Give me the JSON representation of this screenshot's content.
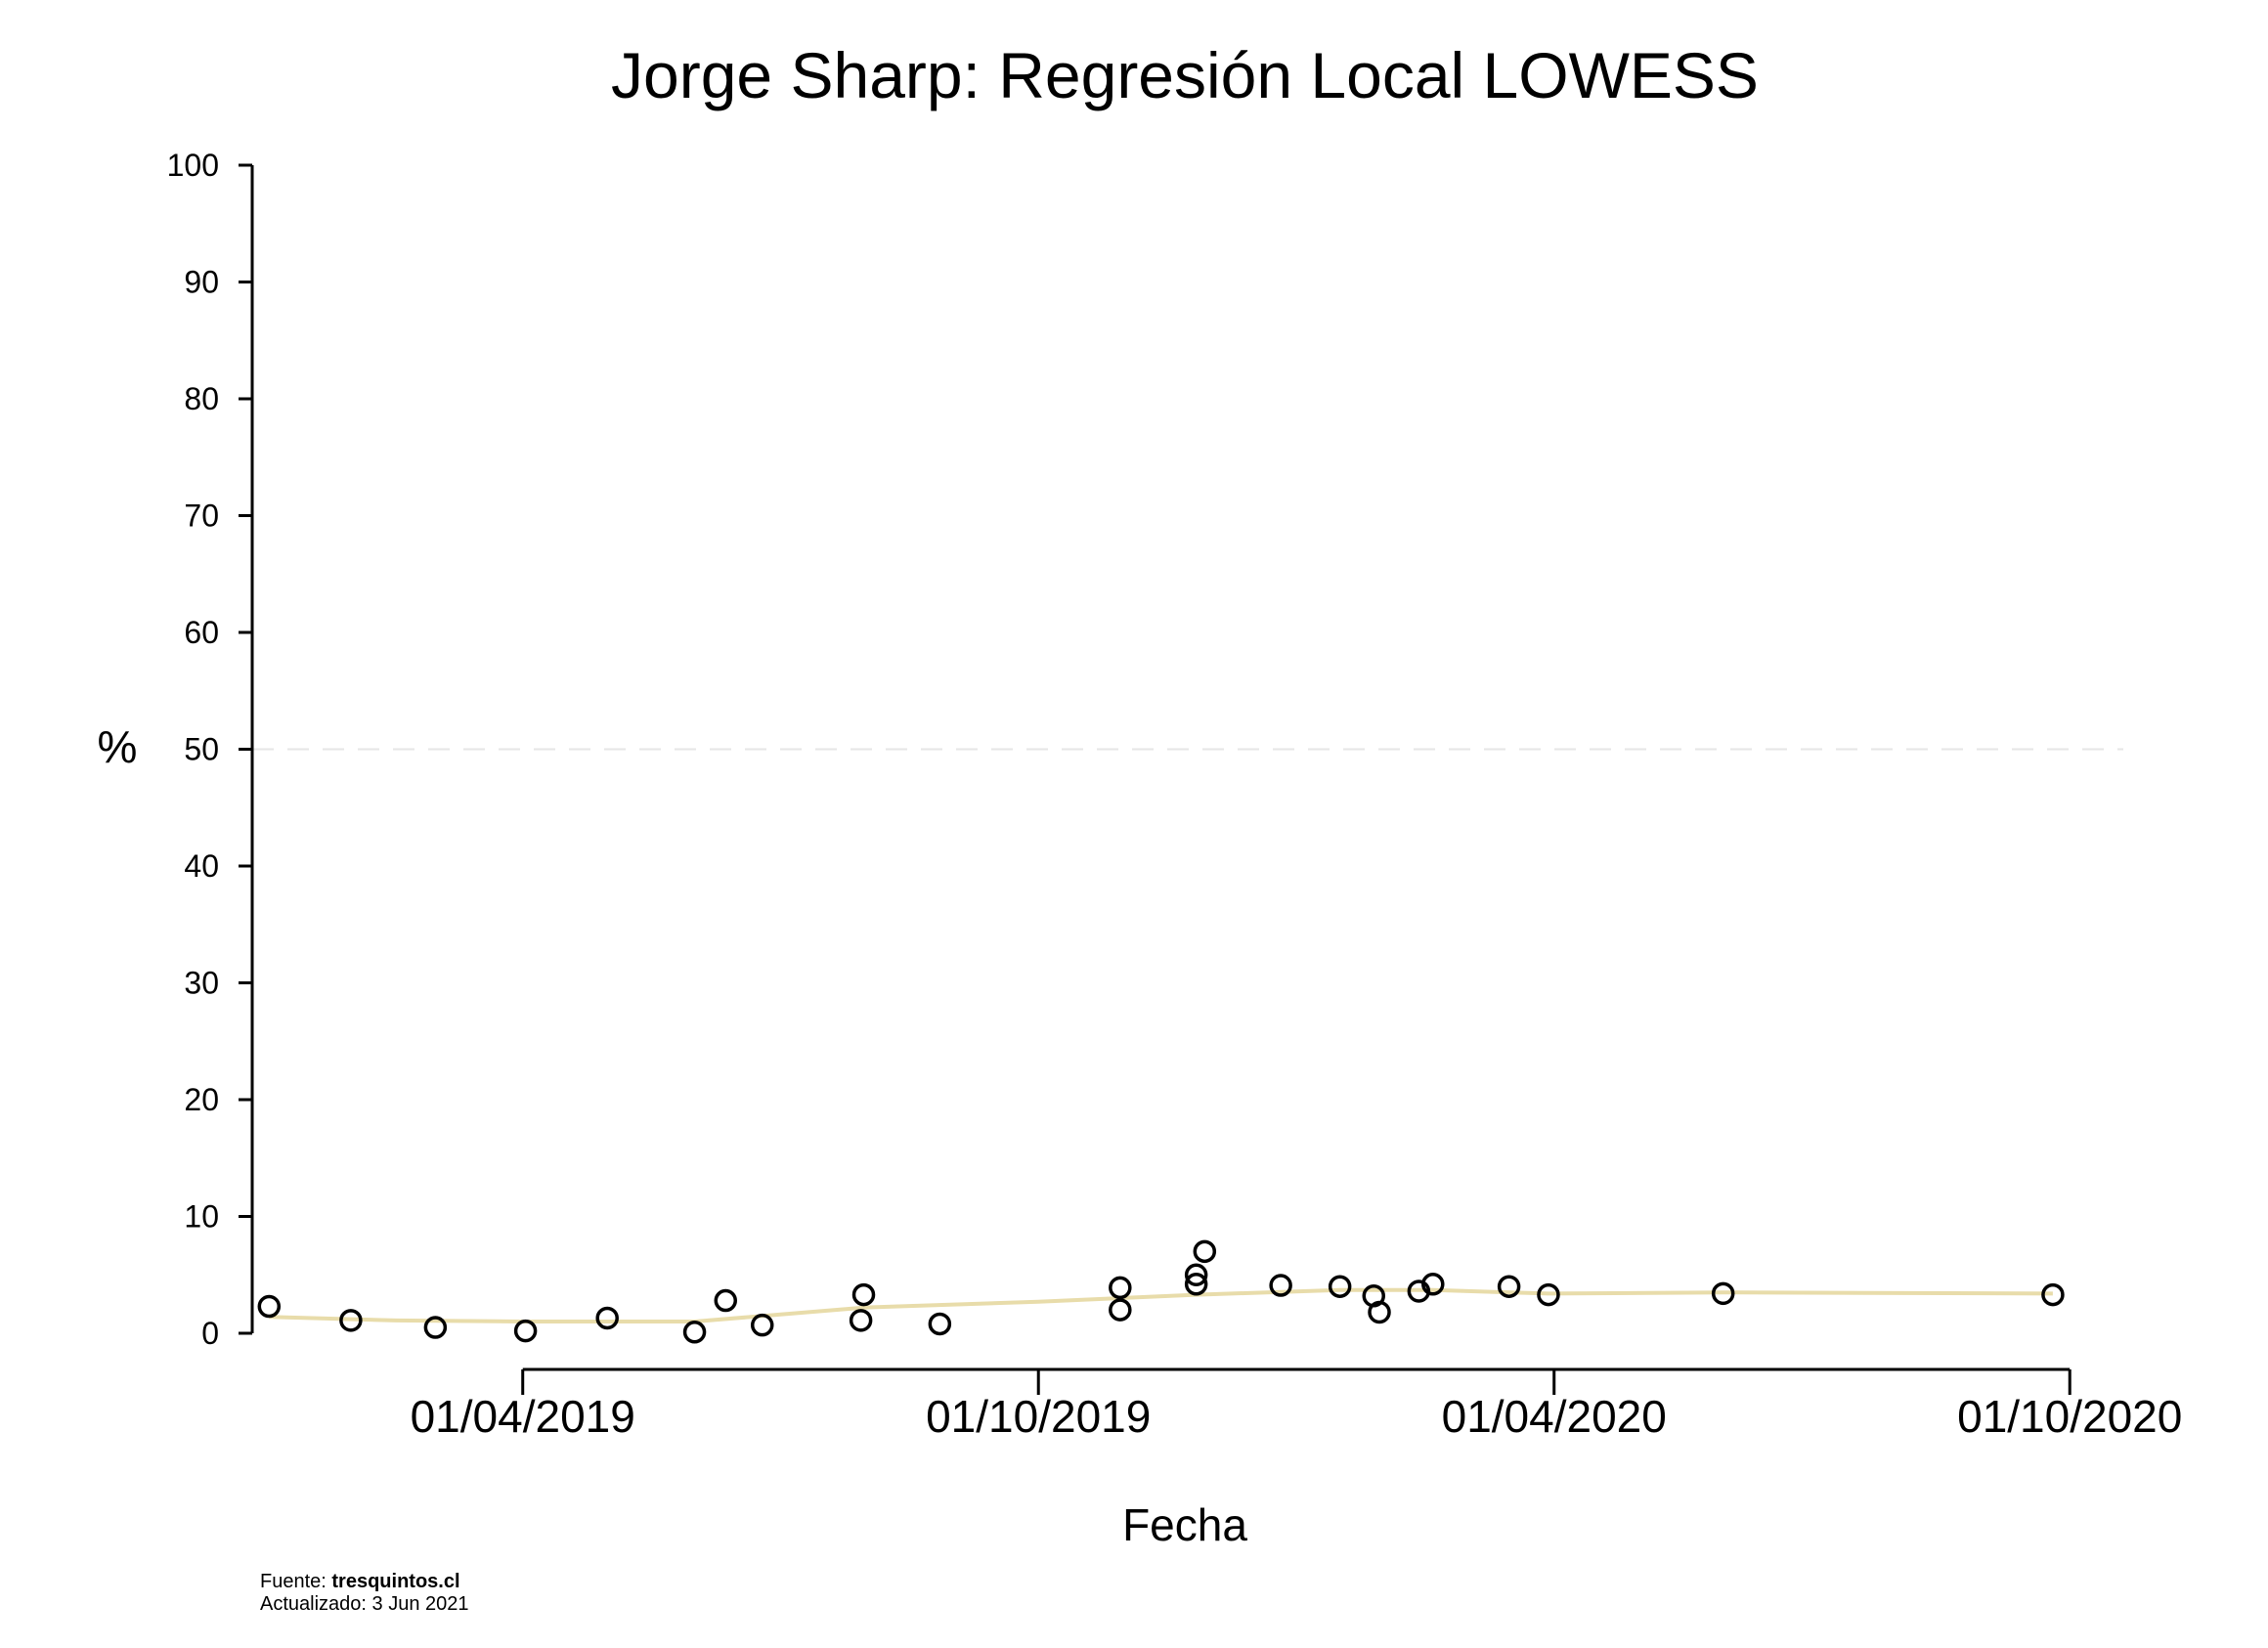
{
  "chart_data": {
    "type": "scatter",
    "title": "Jorge Sharp: Regresión Local LOWESS",
    "xlabel": "Fecha",
    "ylabel": "%",
    "ylim": [
      0,
      100
    ],
    "yticks": [
      0,
      10,
      20,
      30,
      40,
      50,
      60,
      70,
      80,
      90,
      100
    ],
    "xlim": [
      "2018-12-26",
      "2020-10-20"
    ],
    "xticks": [
      "2019-04-01",
      "2019-10-01",
      "2020-04-01",
      "2020-10-01"
    ],
    "xtick_labels": [
      "01/04/2019",
      "01/10/2019",
      "01/04/2020",
      "01/10/2020"
    ],
    "reference_line": {
      "y": 50,
      "style": "dashed",
      "color": "#e6e6e6"
    },
    "points_color": "#000000",
    "smooth_color": "#e8dcaa",
    "grid": false,
    "legend": "none",
    "points": [
      {
        "x": "2019-01-01",
        "y": 2.3
      },
      {
        "x": "2019-01-30",
        "y": 1.1
      },
      {
        "x": "2019-03-01",
        "y": 0.5
      },
      {
        "x": "2019-04-02",
        "y": 0.2
      },
      {
        "x": "2019-05-01",
        "y": 1.3
      },
      {
        "x": "2019-06-01",
        "y": 0.1
      },
      {
        "x": "2019-06-12",
        "y": 2.8
      },
      {
        "x": "2019-06-25",
        "y": 0.7
      },
      {
        "x": "2019-07-30",
        "y": 1.1
      },
      {
        "x": "2019-07-31",
        "y": 3.3
      },
      {
        "x": "2019-08-27",
        "y": 0.8
      },
      {
        "x": "2019-10-30",
        "y": 2.0
      },
      {
        "x": "2019-10-30",
        "y": 3.9
      },
      {
        "x": "2019-11-26",
        "y": 4.2
      },
      {
        "x": "2019-11-26",
        "y": 5.0
      },
      {
        "x": "2019-11-29",
        "y": 7.0
      },
      {
        "x": "2019-12-26",
        "y": 4.1
      },
      {
        "x": "2020-01-16",
        "y": 4.0
      },
      {
        "x": "2020-01-28",
        "y": 3.2
      },
      {
        "x": "2020-01-30",
        "y": 1.8
      },
      {
        "x": "2020-02-13",
        "y": 3.6
      },
      {
        "x": "2020-02-18",
        "y": 4.2
      },
      {
        "x": "2020-03-16",
        "y": 4.0
      },
      {
        "x": "2020-03-30",
        "y": 3.3
      },
      {
        "x": "2020-05-31",
        "y": 3.4
      },
      {
        "x": "2020-09-25",
        "y": 3.3
      }
    ],
    "smooth": [
      {
        "x": "2019-01-01",
        "y": 1.4
      },
      {
        "x": "2019-02-15",
        "y": 1.1
      },
      {
        "x": "2019-04-01",
        "y": 1.0
      },
      {
        "x": "2019-06-01",
        "y": 1.0
      },
      {
        "x": "2019-07-01",
        "y": 1.6
      },
      {
        "x": "2019-07-31",
        "y": 2.2
      },
      {
        "x": "2019-10-01",
        "y": 2.7
      },
      {
        "x": "2019-11-26",
        "y": 3.3
      },
      {
        "x": "2020-01-16",
        "y": 3.7
      },
      {
        "x": "2020-02-18",
        "y": 3.7
      },
      {
        "x": "2020-03-30",
        "y": 3.4
      },
      {
        "x": "2020-05-31",
        "y": 3.5
      },
      {
        "x": "2020-09-25",
        "y": 3.4
      }
    ]
  },
  "footer": {
    "source_prefix": "Fuente: ",
    "source_name": "tresquintos.cl",
    "updated": "Actualizado: 3 Jun 2021"
  }
}
